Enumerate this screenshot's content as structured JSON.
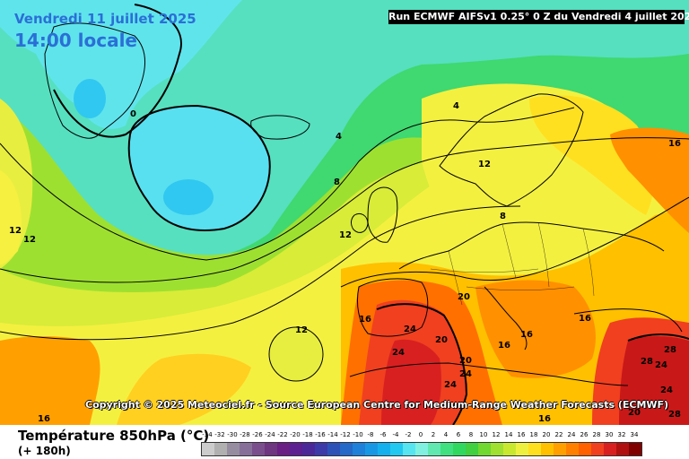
{
  "header": {
    "date": "Vendredi 11 juillet 2025",
    "time": "14:00 locale",
    "run": "Run ECMWF AIFSv1 0.25° 0 Z du Vendredi 4 juillet 2025"
  },
  "copyright": "Copyright © 2025 Meteociel.fr - Source European Centre for Medium-Range Weather Forecasts (ECMWF)",
  "footer": {
    "variable": "Température 850hPa (°C)",
    "lead": "(+ 180h)"
  },
  "scale": {
    "labels": [
      "-34",
      "-32",
      "-30",
      "-28",
      "-26",
      "-24",
      "-22",
      "-20",
      "-18",
      "-16",
      "-14",
      "-12",
      "-10",
      "-8",
      "-6",
      "-4",
      "-2",
      "0",
      "2",
      "4",
      "6",
      "8",
      "10",
      "12",
      "14",
      "16",
      "18",
      "20",
      "22",
      "24",
      "26",
      "28",
      "30",
      "32",
      "34"
    ],
    "colors": [
      "#cccccc",
      "#b0b0b0",
      "#968ea0",
      "#86709a",
      "#7a4e8c",
      "#6e3580",
      "#6a1f84",
      "#5c2090",
      "#4a2898",
      "#3c3aa8",
      "#2c52b8",
      "#2468c8",
      "#1e80d8",
      "#1898e4",
      "#14b0ee",
      "#22c8f0",
      "#56e4f0",
      "#80f0e0",
      "#60e8b0",
      "#40e080",
      "#30d860",
      "#40d040",
      "#70d830",
      "#a0e030",
      "#c8e830",
      "#eef040",
      "#ffe020",
      "#ffc000",
      "#ffa000",
      "#ff8000",
      "#ff6000",
      "#f04020",
      "#d82020",
      "#b01010",
      "#800000"
    ]
  },
  "contour_labels": [
    {
      "text": "0"
    },
    {
      "text": "4"
    },
    {
      "text": "4"
    },
    {
      "text": "8"
    },
    {
      "text": "12"
    },
    {
      "text": "12"
    },
    {
      "text": "12"
    },
    {
      "text": "12"
    },
    {
      "text": "12"
    },
    {
      "text": "16"
    },
    {
      "text": "16"
    },
    {
      "text": "16"
    },
    {
      "text": "16"
    },
    {
      "text": "16"
    },
    {
      "text": "16"
    },
    {
      "text": "16"
    },
    {
      "text": "20"
    },
    {
      "text": "20"
    },
    {
      "text": "20"
    },
    {
      "text": "20"
    },
    {
      "text": "24"
    },
    {
      "text": "24"
    },
    {
      "text": "24"
    },
    {
      "text": "24"
    },
    {
      "text": "24"
    },
    {
      "text": "24"
    },
    {
      "text": "28"
    },
    {
      "text": "28"
    },
    {
      "text": "28"
    },
    {
      "text": "8"
    }
  ]
}
